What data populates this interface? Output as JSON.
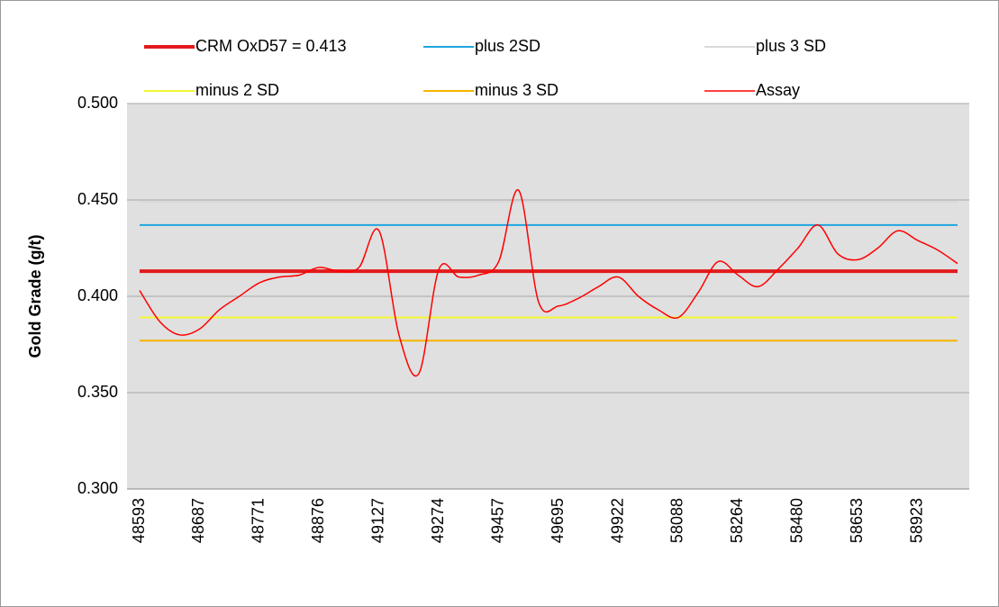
{
  "chart_data": {
    "type": "line",
    "y_label": "Gold Grade (g/t)",
    "categories": [
      "48593",
      null,
      null,
      "48687",
      null,
      null,
      "48771",
      null,
      null,
      "48876",
      null,
      null,
      "49127",
      null,
      null,
      "49274",
      null,
      null,
      "49457",
      null,
      null,
      "49695",
      null,
      null,
      "49922",
      null,
      null,
      "58088",
      null,
      null,
      "58264",
      null,
      null,
      "58480",
      null,
      null,
      "58653",
      null,
      null,
      "58923",
      null,
      null
    ],
    "reference_lines": [
      {
        "name": "CRM OxD57 = 0.413",
        "color": "#e31a1c",
        "width": 4,
        "value": 0.413
      },
      {
        "name": "plus 2SD",
        "color": "#1fa6e0",
        "width": 2,
        "value": 0.437
      },
      {
        "name": "plus 3 SD",
        "color": "#d9d9d9",
        "width": 2,
        "value": 0.449
      },
      {
        "name": "minus 2 SD",
        "color": "#f5f532",
        "width": 2,
        "value": 0.389
      },
      {
        "name": "minus 3 SD",
        "color": "#f5b400",
        "width": 2,
        "value": 0.377
      }
    ],
    "series": [
      {
        "name": "Assay",
        "color": "#ff0000",
        "values": [
          0.403,
          0.387,
          0.38,
          0.383,
          0.393,
          0.4,
          0.407,
          0.41,
          0.411,
          0.415,
          0.413,
          0.415,
          0.434,
          0.38,
          0.36,
          0.414,
          0.41,
          0.411,
          0.418,
          0.455,
          0.397,
          0.395,
          0.399,
          0.405,
          0.41,
          0.4,
          0.393,
          0.389,
          0.402,
          0.418,
          0.411,
          0.405,
          0.414,
          0.425,
          0.437,
          0.422,
          0.419,
          0.425,
          0.434,
          0.429,
          0.424,
          0.417
        ]
      }
    ],
    "ylim": [
      0.3,
      0.5
    ],
    "yticks": [
      {
        "value": 0.3,
        "label": "0.300"
      },
      {
        "value": 0.35,
        "label": "0.350"
      },
      {
        "value": 0.4,
        "label": "0.400"
      },
      {
        "value": 0.45,
        "label": "0.450"
      },
      {
        "value": 0.5,
        "label": "0.500"
      }
    ],
    "grid": true
  }
}
